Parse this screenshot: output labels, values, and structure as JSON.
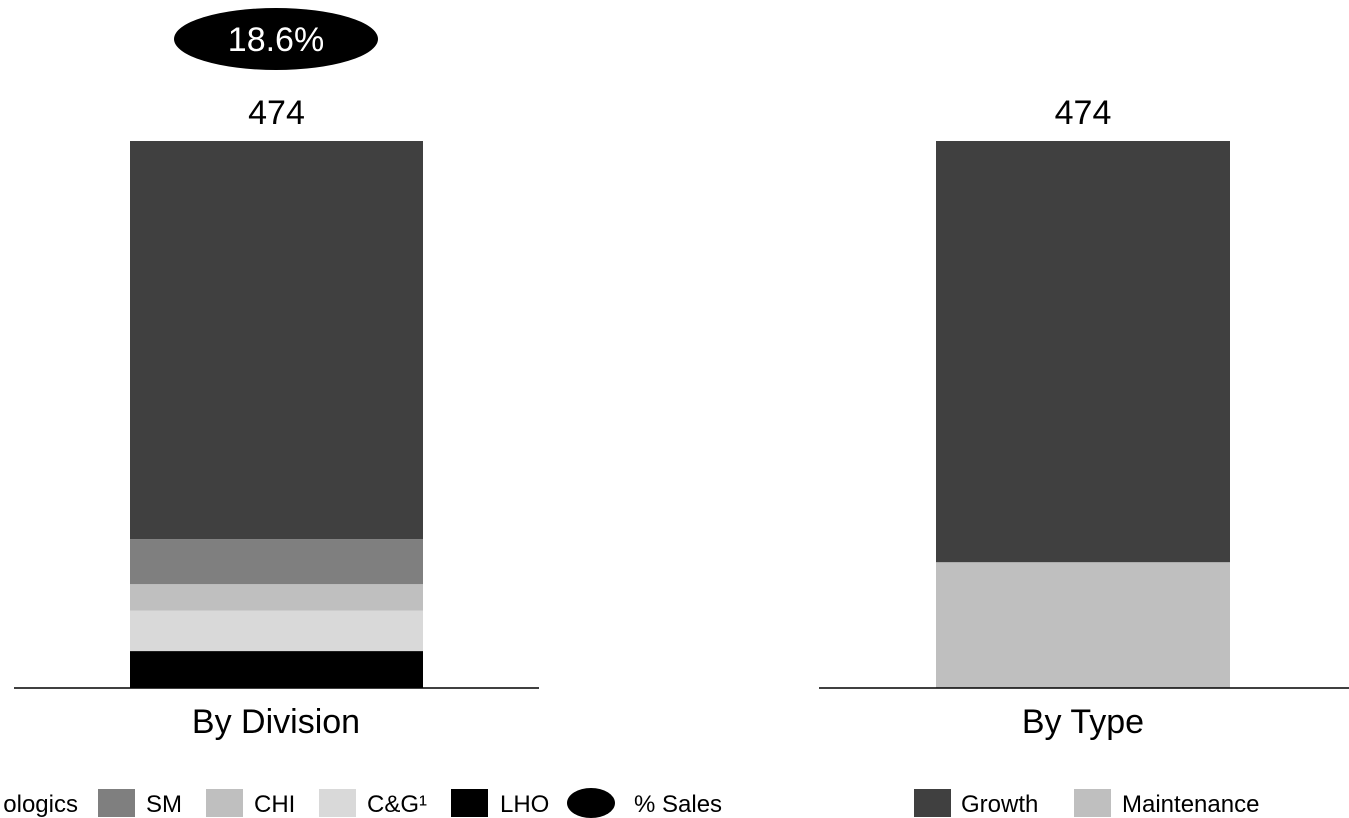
{
  "chart_data": [
    {
      "type": "bar",
      "stacked": true,
      "xlabel": "By Division",
      "total": "474",
      "pct_sales": "18.6%",
      "ylim": [
        0,
        474
      ],
      "series": [
        {
          "name": "LHO",
          "value": 32,
          "color": "#000000"
        },
        {
          "name": "C&G¹",
          "value": 35,
          "color": "#d9d9d9"
        },
        {
          "name": "CHI",
          "value": 23,
          "color": "#bfbfbf"
        },
        {
          "name": "SM",
          "value": 39,
          "color": "#7f7f7f"
        },
        {
          "name": "Biologics",
          "value": 345,
          "color": "#404040"
        }
      ],
      "legend": [
        {
          "name": "Biologics",
          "swatch": "rect",
          "color": "#404040",
          "visible_text": "ologics"
        },
        {
          "name": "SM",
          "swatch": "rect",
          "color": "#7f7f7f",
          "visible_text": "SM"
        },
        {
          "name": "CHI",
          "swatch": "rect",
          "color": "#bfbfbf",
          "visible_text": "CHI"
        },
        {
          "name": "C&G¹",
          "swatch": "rect",
          "color": "#d9d9d9",
          "visible_text": "C&G¹"
        },
        {
          "name": "LHO",
          "swatch": "rect",
          "color": "#000000",
          "visible_text": "LHO"
        },
        {
          "name": "% Sales",
          "swatch": "ellipse",
          "color": "#000000",
          "visible_text": "% Sales"
        }
      ]
    },
    {
      "type": "bar",
      "stacked": true,
      "xlabel": "By Type",
      "total": "474",
      "ylim": [
        0,
        474
      ],
      "series": [
        {
          "name": "Maintenance",
          "value": 109,
          "color": "#bfbfbf"
        },
        {
          "name": "Growth",
          "value": 365,
          "color": "#404040"
        }
      ],
      "legend": [
        {
          "name": "Growth",
          "swatch": "rect",
          "color": "#404040",
          "visible_text": "Growth"
        },
        {
          "name": "Maintenance",
          "swatch": "rect",
          "color": "#bfbfbf",
          "visible_text": "Maintenance"
        }
      ]
    }
  ]
}
